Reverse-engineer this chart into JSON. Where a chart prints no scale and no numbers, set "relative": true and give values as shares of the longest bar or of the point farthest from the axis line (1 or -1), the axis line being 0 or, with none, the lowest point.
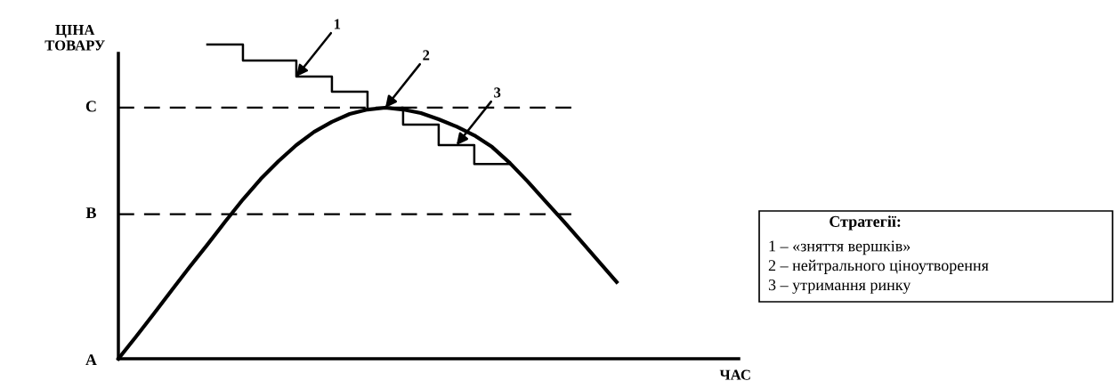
{
  "chart_data": {
    "type": "line",
    "relative": true,
    "ylabel": "ЦІНА\nТОВАРУ",
    "categories": [
      null,
      null,
      null,
      null,
      null,
      null,
      null,
      null,
      null,
      null,
      null,
      null,
      null,
      null,
      null,
      null,
      null,
      null,
      null,
      null,
      null,
      null,
      null,
      null,
      null,
      null,
      null,
      null,
      null
    ],
    "series": [
      {
        "name": "2",
        "color": "#000000",
        "values": [
          0,
          0.071,
          0.144,
          0.218,
          0.292,
          0.363,
          0.436,
          0.507,
          0.572,
          0.629,
          0.68,
          0.722,
          0.754,
          0.779,
          0.793,
          0.799,
          0.793,
          0.782,
          0.762,
          0.739,
          0.711,
          0.674,
          0.623,
          0.564,
          0.501,
          0.439,
          0.374,
          0.309,
          0.244
        ]
      },
      {
        "name": "1",
        "type": "step",
        "color": "#000000",
        "values": [
          null,
          null,
          null,
          null,
          null,
          1.0,
          1.0,
          0.949,
          0.949,
          0.949,
          0.898,
          0.898,
          0.85,
          0.85,
          0.799,
          null,
          null,
          null,
          null,
          null,
          null,
          null,
          null,
          null,
          null,
          null,
          null,
          null,
          null
        ]
      },
      {
        "name": "3",
        "type": "step",
        "color": "#000000",
        "values": [
          null,
          null,
          null,
          null,
          null,
          null,
          null,
          null,
          null,
          null,
          null,
          null,
          null,
          null,
          null,
          0.799,
          0.745,
          0.745,
          0.68,
          0.68,
          0.62,
          0.62,
          0.62,
          null,
          null,
          null,
          null,
          null,
          null
        ]
      }
    ],
    "ref_lines": [
      {
        "axis": "y",
        "value": 0.46,
        "label": "B",
        "line_style": "dashed",
        "color": "#000000"
      },
      {
        "axis": "y",
        "value": 0.799,
        "label": "C",
        "line_style": "dashed",
        "color": "#000000"
      }
    ],
    "annotations": [
      "A",
      "ЧАС",
      "Стратегії:",
      "1 – «зняття вершків»",
      "2 – нейтрального ціноутворення",
      "3 – утримання ринку"
    ]
  }
}
